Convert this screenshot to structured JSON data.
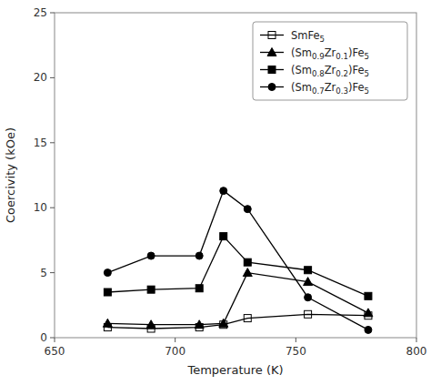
{
  "chart_data": {
    "type": "line",
    "xlabel": "Temperature (K)",
    "ylabel": "Coercivity (kOe)",
    "x": [
      672,
      690,
      710,
      720,
      730,
      755,
      780
    ],
    "series": [
      {
        "name": "SmFe5",
        "color": "black",
        "marker": "square-open",
        "values": [
          0.8,
          0.7,
          0.8,
          1.0,
          1.5,
          1.8,
          1.7
        ]
      },
      {
        "name": "(Sm0.9Zr0.1)Fe5",
        "color": "black",
        "marker": "triangle",
        "values": [
          1.1,
          1.0,
          1.0,
          1.1,
          5.0,
          4.3,
          1.9
        ]
      },
      {
        "name": "(Sm0.8Zr0.2)Fe5",
        "color": "black",
        "marker": "square",
        "values": [
          3.5,
          3.7,
          3.8,
          7.8,
          5.8,
          5.2,
          3.2
        ]
      },
      {
        "name": "(Sm0.7Zr0.3)Fe5",
        "color": "black",
        "marker": "circle",
        "values": [
          5.0,
          6.3,
          6.3,
          11.3,
          9.9,
          3.1,
          0.6
        ]
      }
    ],
    "xlim": [
      650,
      800
    ],
    "ylim": [
      0,
      25
    ],
    "xticks": [
      650,
      700,
      750,
      800
    ],
    "yticks": [
      0,
      5,
      10,
      15,
      20,
      25
    ],
    "legend": "upper right",
    "grid": false
  }
}
